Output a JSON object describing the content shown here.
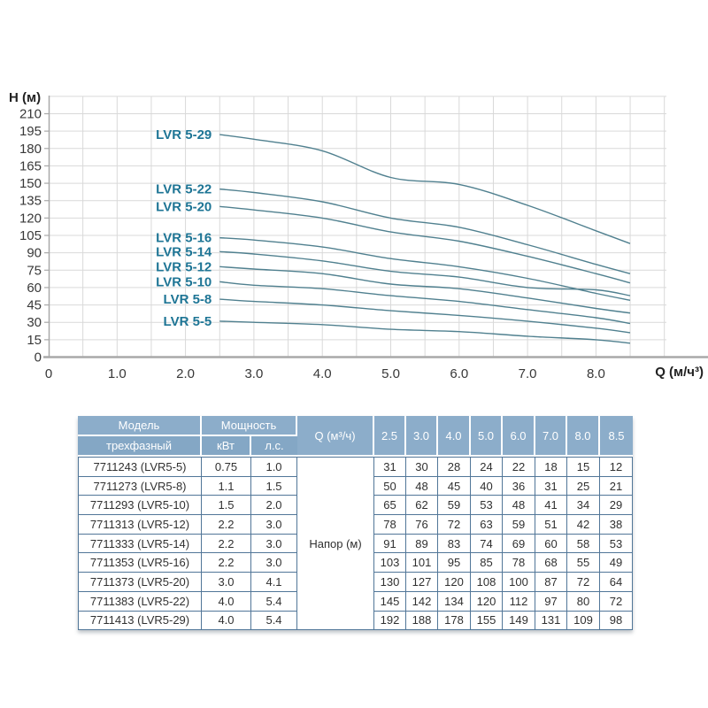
{
  "chart": {
    "y_axis_label": "H (м)",
    "x_axis_label": "Q (м/ч³)",
    "y_ticks": [
      210,
      195,
      180,
      165,
      150,
      135,
      120,
      105,
      90,
      75,
      60,
      45,
      30,
      15,
      0
    ],
    "x_ticks": [
      "0",
      "1.0",
      "2.0",
      "3.0",
      "4.0",
      "5.0",
      "6.0",
      "7.0",
      "8.0"
    ]
  },
  "chart_data": {
    "type": "line",
    "title": "",
    "xlabel": "Q (м/ч³)",
    "ylabel": "H (м)",
    "x": [
      2.5,
      3.0,
      4.0,
      5.0,
      6.0,
      7.0,
      8.0,
      8.5
    ],
    "series": [
      {
        "name": "LVR 5-29",
        "values": [
          192,
          188,
          178,
          155,
          149,
          131,
          109,
          98
        ]
      },
      {
        "name": "LVR 5-22",
        "values": [
          145,
          142,
          134,
          120,
          112,
          97,
          80,
          72
        ]
      },
      {
        "name": "LVR 5-20",
        "values": [
          130,
          127,
          120,
          108,
          100,
          87,
          72,
          64
        ]
      },
      {
        "name": "LVR 5-16",
        "values": [
          103,
          101,
          95,
          85,
          78,
          68,
          55,
          49
        ]
      },
      {
        "name": "LVR 5-14",
        "values": [
          91,
          89,
          83,
          74,
          69,
          60,
          58,
          53
        ]
      },
      {
        "name": "LVR 5-12",
        "values": [
          78,
          76,
          72,
          63,
          59,
          51,
          42,
          38
        ]
      },
      {
        "name": "LVR 5-10",
        "values": [
          65,
          62,
          59,
          53,
          48,
          41,
          34,
          29
        ]
      },
      {
        "name": "LVR 5-8",
        "values": [
          50,
          48,
          45,
          40,
          36,
          31,
          25,
          21
        ]
      },
      {
        "name": "LVR 5-5",
        "values": [
          31,
          30,
          28,
          24,
          22,
          18,
          15,
          12
        ]
      }
    ],
    "xlim": [
      0,
      9
    ],
    "ylim": [
      0,
      225
    ],
    "grid": true,
    "legend_position": "inline-labels-left-of-curves",
    "colors": {
      "curve": "#50808f",
      "label": "#1e7595",
      "grid": "#d9d9d9",
      "axis": "#a9a9a9",
      "tick_text": "#383838"
    }
  },
  "table": {
    "header": {
      "model": "Модель",
      "model_sub": "трехфазный",
      "power": "Мощность",
      "power_kw": "кВт",
      "power_hp": "л.с.",
      "q_label": "Q (м³/ч)",
      "flow_columns": [
        "2.5",
        "3.0",
        "4.0",
        "5.0",
        "6.0",
        "7.0",
        "8.0",
        "8.5"
      ]
    },
    "head_column_label": "Напор (м)",
    "rows": [
      {
        "model": "7711243 (LVR5-5)",
        "kw": "0.75",
        "hp": "1.0",
        "heads": [
          31,
          30,
          28,
          24,
          22,
          18,
          15,
          12
        ]
      },
      {
        "model": "7711273 (LVR5-8)",
        "kw": "1.1",
        "hp": "1.5",
        "heads": [
          50,
          48,
          45,
          40,
          36,
          31,
          25,
          21
        ]
      },
      {
        "model": "7711293 (LVR5-10)",
        "kw": "1.5",
        "hp": "2.0",
        "heads": [
          65,
          62,
          59,
          53,
          48,
          41,
          34,
          29
        ]
      },
      {
        "model": "7711313 (LVR5-12)",
        "kw": "2.2",
        "hp": "3.0",
        "heads": [
          78,
          76,
          72,
          63,
          59,
          51,
          42,
          38
        ]
      },
      {
        "model": "7711333 (LVR5-14)",
        "kw": "2.2",
        "hp": "3.0",
        "heads": [
          91,
          89,
          83,
          74,
          69,
          60,
          58,
          53
        ]
      },
      {
        "model": "7711353 (LVR5-16)",
        "kw": "2.2",
        "hp": "3.0",
        "heads": [
          103,
          101,
          95,
          85,
          78,
          68,
          55,
          49
        ]
      },
      {
        "model": "7711373 (LVR5-20)",
        "kw": "3.0",
        "hp": "4.1",
        "heads": [
          130,
          127,
          120,
          108,
          100,
          87,
          72,
          64
        ]
      },
      {
        "model": "7711383 (LVR5-22)",
        "kw": "4.0",
        "hp": "5.4",
        "heads": [
          145,
          142,
          134,
          120,
          112,
          97,
          80,
          72
        ]
      },
      {
        "model": "7711413 (LVR5-29)",
        "kw": "4.0",
        "hp": "5.4",
        "heads": [
          192,
          188,
          178,
          155,
          149,
          131,
          109,
          98
        ]
      }
    ],
    "colors": {
      "header_bg": "#87aac8",
      "header_text": "#ffffff",
      "border": "#517698",
      "body_text": "#303030"
    }
  }
}
